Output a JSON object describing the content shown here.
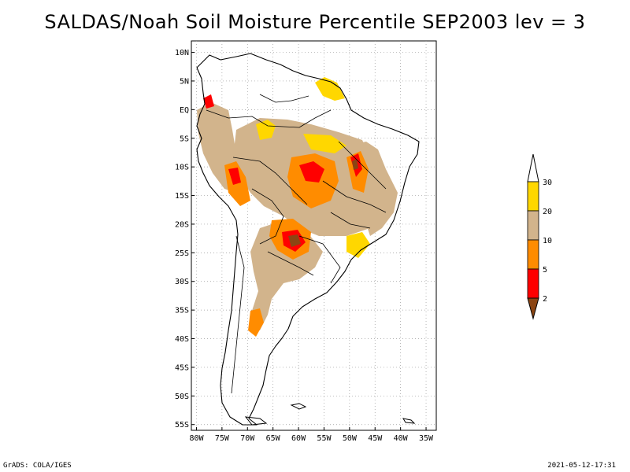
{
  "title": "SALDAS/Noah Soil Moisture Percentile SEP2003 lev = 3",
  "map": {
    "lat_labels": [
      "10N",
      "5N",
      "EQ",
      "5S",
      "10S",
      "15S",
      "20S",
      "25S",
      "30S",
      "35S",
      "40S",
      "45S",
      "50S",
      "55S"
    ],
    "lon_labels": [
      "80W",
      "75W",
      "70W",
      "65W",
      "60W",
      "55W",
      "50W",
      "45W",
      "40W",
      "35W"
    ],
    "lon_range": [
      -81,
      -33
    ],
    "lat_range": [
      -56,
      12
    ],
    "grid": true
  },
  "legend": {
    "levels": [
      "2",
      "5",
      "10",
      "20",
      "30"
    ],
    "colors": [
      "#8b4513",
      "#ff0000",
      "#ff8c00",
      "#d2b48c",
      "#ffd700",
      "#ffffff"
    ],
    "ranges": [
      "<2",
      "2-5",
      "5-10",
      "10-20",
      "20-30",
      ">30"
    ]
  },
  "footer": {
    "left": "GrADS: COLA/IGES",
    "right": "2021-05-12-17:31"
  }
}
